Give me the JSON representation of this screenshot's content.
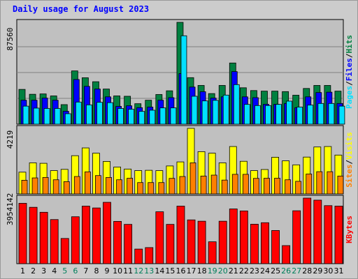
{
  "chart_data": {
    "type": "bar",
    "title": "Daily usage for August 2023",
    "categories": [
      "1",
      "2",
      "3",
      "4",
      "5",
      "6",
      "7",
      "8",
      "9",
      "10",
      "11",
      "12",
      "13",
      "14",
      "15",
      "16",
      "17",
      "18",
      "19",
      "20",
      "21",
      "22",
      "23",
      "24",
      "25",
      "26",
      "27",
      "28",
      "29",
      "30",
      "31"
    ],
    "weekend_days": [
      "5",
      "6",
      "12",
      "13",
      "19",
      "20",
      "26",
      "27"
    ],
    "panels": [
      {
        "name": "hits-files-pages",
        "ymax_label": "87560",
        "ylim": [
          0,
          87560
        ],
        "series": [
          {
            "name": "Hits",
            "color": "#008040",
            "values": [
              29900,
              25700,
              26000,
              24300,
              16800,
              45800,
              39900,
              36500,
              30200,
              24300,
              24000,
              17600,
              20600,
              25500,
              28700,
              87560,
              40000,
              33300,
              26300,
              33300,
              52600,
              31300,
              28900,
              28400,
              28400,
              28000,
              24900,
              30700,
              33300,
              33300,
              28400
            ]
          },
          {
            "name": "Files",
            "color": "#0000ff",
            "values": [
              20600,
              20600,
              22400,
              20600,
              11100,
              38400,
              32500,
              30200,
              23500,
              15300,
              15800,
              14200,
              14700,
              20600,
              22800,
              43500,
              31900,
              27900,
              22400,
              23500,
              45200,
              23500,
              22800,
              17100,
              17100,
              17800,
              14200,
              23500,
              27200,
              27500,
              17800
            ]
          },
          {
            "name": "Pages",
            "color": "#00e0ff",
            "values": [
              15500,
              13800,
              13500,
              13500,
              9000,
              19000,
              16600,
              18800,
              18500,
              13500,
              12800,
              11000,
              12000,
              14000,
              14000,
              76000,
              24000,
              20000,
              20500,
              25000,
              34000,
              17000,
              16000,
              16000,
              17000,
              19800,
              14700,
              16400,
              17800,
              17800,
              15500
            ]
          }
        ],
        "legend": [
          {
            "label": "Pages",
            "color": "#00e0ff"
          },
          {
            "label": "/",
            "color": "#000000"
          },
          {
            "label": "Files",
            "color": "#0000ff"
          },
          {
            "label": "/",
            "color": "#000000"
          },
          {
            "label": "Hits",
            "color": "#008040"
          }
        ]
      },
      {
        "name": "visits-sites",
        "ymax_label": "4219",
        "ylim": [
          0,
          4219
        ],
        "series": [
          {
            "name": "Visits",
            "color": "#ffff00",
            "values": [
              1400,
              2000,
              1970,
              1500,
              1580,
              2460,
              2960,
              2620,
              2090,
              1730,
              1600,
              1500,
              1520,
              1500,
              1800,
              2060,
              4219,
              2720,
              2620,
              2000,
              3050,
              2100,
              1500,
              1570,
              2360,
              2130,
              1870,
              2370,
              3020,
              3050,
              2500
            ]
          },
          {
            "name": "Sites",
            "color": "#ff8000",
            "values": [
              880,
              1030,
              1060,
              910,
              790,
              1120,
              1420,
              1180,
              1060,
              910,
              1010,
              730,
              730,
              730,
              1000,
              1120,
              2000,
              1150,
              1210,
              890,
              1260,
              1260,
              1000,
              1010,
              1010,
              910,
              810,
              1280,
              1430,
              1430,
              1150
            ]
          }
        ],
        "legend": [
          {
            "label": "Sites",
            "color": "#ff8000"
          },
          {
            "label": "/",
            "color": "#000000"
          },
          {
            "label": "Visits",
            "color": "#ffff00"
          }
        ]
      },
      {
        "name": "kbytes",
        "ymax_label": "3954142",
        "ylim": [
          0,
          3954142
        ],
        "series": [
          {
            "name": "KBytes",
            "color": "#ff0000",
            "values": [
              3640000,
              3400000,
              3100000,
              2660000,
              1520000,
              2830000,
              3470000,
              3360000,
              3700000,
              2550000,
              2370000,
              880000,
              970000,
              3130000,
              2370000,
              3470000,
              2640000,
              2560000,
              1320000,
              2560000,
              3300000,
              3180000,
              2380000,
              2470000,
              2000000,
              1090000,
              3190000,
              3954142,
              3830000,
              3500000,
              3470000
            ]
          }
        ],
        "legend": [
          {
            "label": "KBytes",
            "color": "#ff0000"
          }
        ]
      }
    ]
  }
}
